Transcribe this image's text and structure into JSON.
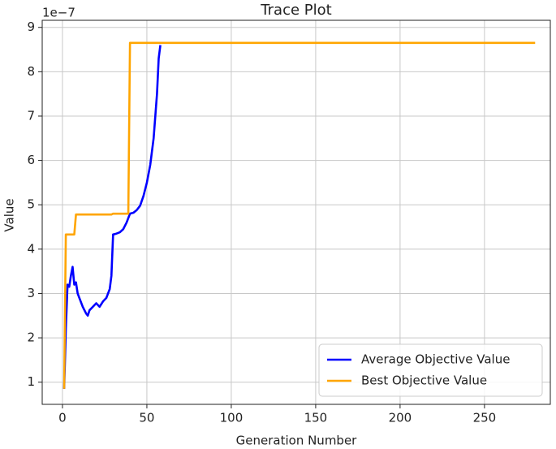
{
  "chart_data": {
    "type": "line",
    "title": "Trace Plot",
    "xlabel": "Generation Number",
    "ylabel": "Value",
    "y_offset_text": "1e−7",
    "xlim": [
      -12,
      289
    ],
    "ylim": [
      0.5,
      9.16
    ],
    "xticks": [
      0,
      50,
      100,
      150,
      200,
      250
    ],
    "yticks": [
      1,
      2,
      3,
      4,
      5,
      6,
      7,
      8,
      9
    ],
    "grid": true,
    "legend": "lower right",
    "series": [
      {
        "name": "Average Objective Value",
        "color": "#0000ff",
        "x": [
          1,
          2,
          3,
          4,
          5,
          6,
          7,
          8,
          9,
          10,
          12,
          14,
          15,
          16,
          18,
          20,
          22,
          24,
          26,
          28,
          29,
          30,
          32,
          34,
          36,
          38,
          40,
          42,
          44,
          46,
          48,
          50,
          52,
          54,
          56,
          57,
          58
        ],
        "values": [
          0.85,
          2.2,
          3.2,
          3.15,
          3.4,
          3.6,
          3.2,
          3.25,
          3.0,
          2.9,
          2.7,
          2.55,
          2.5,
          2.62,
          2.7,
          2.78,
          2.7,
          2.82,
          2.9,
          3.1,
          3.4,
          4.33,
          4.35,
          4.38,
          4.45,
          4.6,
          4.8,
          4.82,
          4.88,
          4.98,
          5.2,
          5.5,
          5.9,
          6.5,
          7.5,
          8.3,
          8.6
        ]
      },
      {
        "name": "Best Objective Value",
        "color": "#ffa500",
        "x": [
          1,
          2,
          7,
          8,
          29,
          30,
          39,
          40,
          280
        ],
        "values": [
          0.85,
          4.33,
          4.33,
          4.78,
          4.78,
          4.8,
          4.8,
          8.65,
          8.65
        ]
      }
    ]
  }
}
